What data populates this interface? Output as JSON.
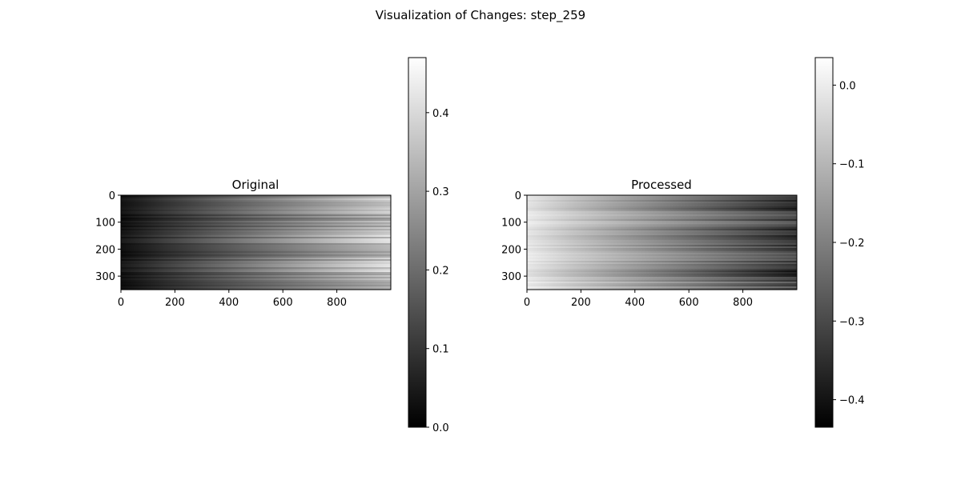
{
  "figure": {
    "title": "Visualization of Changes: step_259"
  },
  "chart_data": [
    {
      "type": "heatmap",
      "title": "Original",
      "colormap": "gray",
      "rows": 350,
      "cols": 1000,
      "xlim": [
        0,
        1000
      ],
      "ylim": [
        350,
        0
      ],
      "xticks": [
        0,
        200,
        400,
        600,
        800
      ],
      "yticks": [
        0,
        100,
        200,
        300
      ],
      "gradient": {
        "axis": "x",
        "start_value": 0.03,
        "end_value": 0.35,
        "row_noise": 0.05
      },
      "colorbar": {
        "vmin": 0.0,
        "vmax": 0.47,
        "ticks": [
          "0.0",
          "0.1",
          "0.2",
          "0.3",
          "0.4"
        ],
        "tick_values": [
          0.0,
          0.1,
          0.2,
          0.3,
          0.4
        ]
      }
    },
    {
      "type": "heatmap",
      "title": "Processed",
      "colormap": "gray",
      "rows": 350,
      "cols": 1000,
      "xlim": [
        0,
        1000
      ],
      "ylim": [
        350,
        0
      ],
      "xticks": [
        0,
        200,
        400,
        600,
        800
      ],
      "yticks": [
        0,
        100,
        200,
        300
      ],
      "gradient": {
        "axis": "x",
        "start_value": -0.01,
        "end_value": -0.33,
        "row_noise": 0.05
      },
      "colorbar": {
        "vmin": -0.435,
        "vmax": 0.035,
        "ticks": [
          "−0.4",
          "−0.3",
          "−0.2",
          "−0.1",
          "0.0"
        ],
        "tick_values": [
          -0.4,
          -0.3,
          -0.2,
          -0.1,
          0.0
        ]
      }
    }
  ]
}
